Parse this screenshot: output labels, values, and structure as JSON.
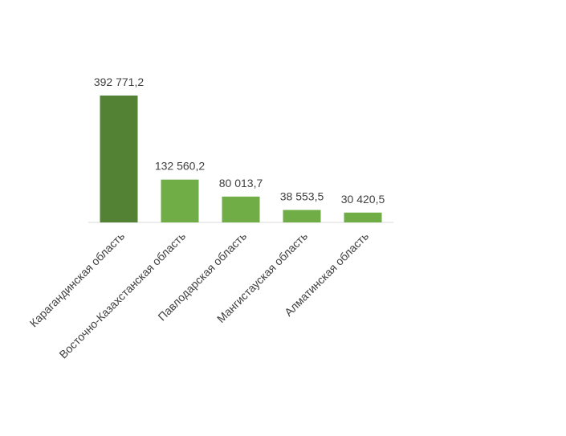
{
  "chart_data": {
    "type": "bar",
    "categories": [
      "Карагандинская область",
      "Восточно-Казахстанская область",
      "Павлодарская область",
      "Мангистауская область",
      "Алматинская область"
    ],
    "values": [
      392771.2,
      132560.2,
      80013.7,
      38553.5,
      30420.5
    ],
    "value_labels": [
      "392 771,2",
      "132 560,2",
      "80 013,7",
      "38 553,5",
      "30 420,5"
    ],
    "colors": [
      "#548235",
      "#70ad47",
      "#70ad47",
      "#70ad47",
      "#70ad47"
    ]
  }
}
